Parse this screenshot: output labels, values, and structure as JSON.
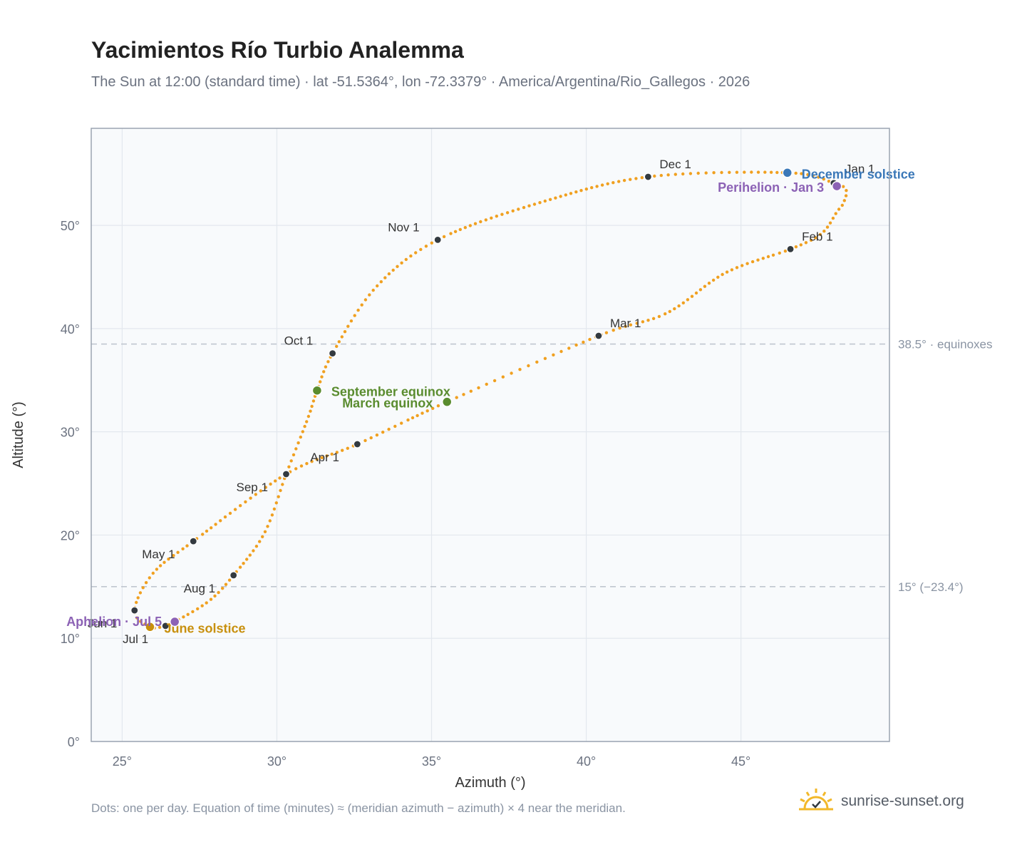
{
  "title": "Yacimientos Río Turbio Analemma",
  "subtitle": "The Sun at 12:00 (standard time) · lat -51.5364°, lon -72.3379° · America/Argentina/Rio_Gallegos · 2026",
  "footnote": "Dots: one per day. Equation of time (minutes) ≈ (meridian azimuth − azimuth) × 4 near the meridian.",
  "brand": {
    "text": "sunrise-sunset.org",
    "icon": "sun-logo-icon"
  },
  "colors": {
    "curve": "#f0a020",
    "month_marker": "#333a40",
    "equinox": "#5a8c2f",
    "december_solstice": "#3b78b8",
    "june_solstice": "#c8900e",
    "apsides": "#8c62b5",
    "plot_bg": "#f8fafc",
    "grid": "#e3e8ee",
    "reference_line": "#c0c6cf"
  },
  "chart_data": {
    "type": "scatter",
    "title": "Yacimientos Río Turbio Analemma",
    "xlabel": "Azimuth (°)",
    "ylabel": "Altitude (°)",
    "xlim": [
      24,
      49.8
    ],
    "ylim": [
      0,
      59.4
    ],
    "xticks": [
      {
        "value": 25,
        "label": "25°"
      },
      {
        "value": 30,
        "label": "30°"
      },
      {
        "value": 35,
        "label": "35°"
      },
      {
        "value": 40,
        "label": "40°"
      },
      {
        "value": 45,
        "label": "45°"
      }
    ],
    "yticks": [
      {
        "value": 0,
        "label": "0°"
      },
      {
        "value": 10,
        "label": "10°"
      },
      {
        "value": 20,
        "label": "20°"
      },
      {
        "value": 30,
        "label": "30°"
      },
      {
        "value": 40,
        "label": "40°"
      },
      {
        "value": 50,
        "label": "50°"
      }
    ],
    "grid": true,
    "reference_lines": [
      {
        "y": 38.5,
        "label": "38.5° · equinoxes"
      },
      {
        "y": 15,
        "label": "15° (−23.4°)"
      }
    ],
    "series": [
      {
        "type": "line-of-daily-dots",
        "points": [
          [
            48.0,
            54.1
          ],
          [
            48.4,
            53.4
          ],
          [
            48.3,
            52.1
          ],
          [
            48.1,
            51.3
          ],
          [
            47.6,
            49.2
          ],
          [
            46.6,
            47.7
          ],
          [
            44.5,
            45.4
          ],
          [
            42.6,
            41.5
          ],
          [
            40.4,
            39.3
          ],
          [
            35.5,
            32.9
          ],
          [
            32.6,
            28.8
          ],
          [
            30.3,
            25.9
          ],
          [
            27.3,
            19.4
          ],
          [
            26.0,
            16.3
          ],
          [
            25.4,
            12.7
          ],
          [
            25.9,
            11.1
          ],
          [
            26.4,
            11.2
          ],
          [
            26.7,
            11.6
          ],
          [
            27.8,
            13.6
          ],
          [
            28.6,
            16.1
          ],
          [
            29.6,
            20.2
          ],
          [
            30.3,
            25.9
          ],
          [
            31.0,
            31.3
          ],
          [
            31.3,
            34.0
          ],
          [
            31.8,
            37.6
          ],
          [
            33.2,
            44.0
          ],
          [
            35.2,
            48.6
          ],
          [
            38.5,
            52.2
          ],
          [
            42.0,
            54.7
          ],
          [
            46.5,
            55.1
          ],
          [
            48.0,
            54.1
          ]
        ]
      }
    ],
    "month_markers": [
      {
        "label": "Jan 1",
        "x": 48.0,
        "y": 54.1
      },
      {
        "label": "Feb 1",
        "x": 46.6,
        "y": 47.7
      },
      {
        "label": "Mar 1",
        "x": 40.4,
        "y": 39.3
      },
      {
        "label": "Apr 1",
        "x": 32.6,
        "y": 28.8
      },
      {
        "label": "May 1",
        "x": 27.3,
        "y": 19.4
      },
      {
        "label": "Jun 1",
        "x": 25.4,
        "y": 12.7
      },
      {
        "label": "Jul 1",
        "x": 26.4,
        "y": 11.2
      },
      {
        "label": "Aug 1",
        "x": 28.6,
        "y": 16.1
      },
      {
        "label": "Sep 1",
        "x": 30.3,
        "y": 25.9
      },
      {
        "label": "Oct 1",
        "x": 31.8,
        "y": 37.6
      },
      {
        "label": "Nov 1",
        "x": 35.2,
        "y": 48.6
      },
      {
        "label": "Dec 1",
        "x": 42.0,
        "y": 54.7
      }
    ],
    "events": [
      {
        "label": "December solstice",
        "x": 46.5,
        "y": 55.1,
        "color_key": "december_solstice"
      },
      {
        "label": "Perihelion · Jan 3",
        "x": 48.1,
        "y": 53.8,
        "color_key": "apsides"
      },
      {
        "label": "September equinox",
        "x": 31.3,
        "y": 34.0,
        "color_key": "equinox"
      },
      {
        "label": "March equinox",
        "x": 35.5,
        "y": 32.9,
        "color_key": "equinox"
      },
      {
        "label": "June solstice",
        "x": 25.9,
        "y": 11.1,
        "color_key": "june_solstice"
      },
      {
        "label": "Aphelion · Jul 5",
        "x": 26.7,
        "y": 11.6,
        "color_key": "apsides"
      }
    ]
  }
}
